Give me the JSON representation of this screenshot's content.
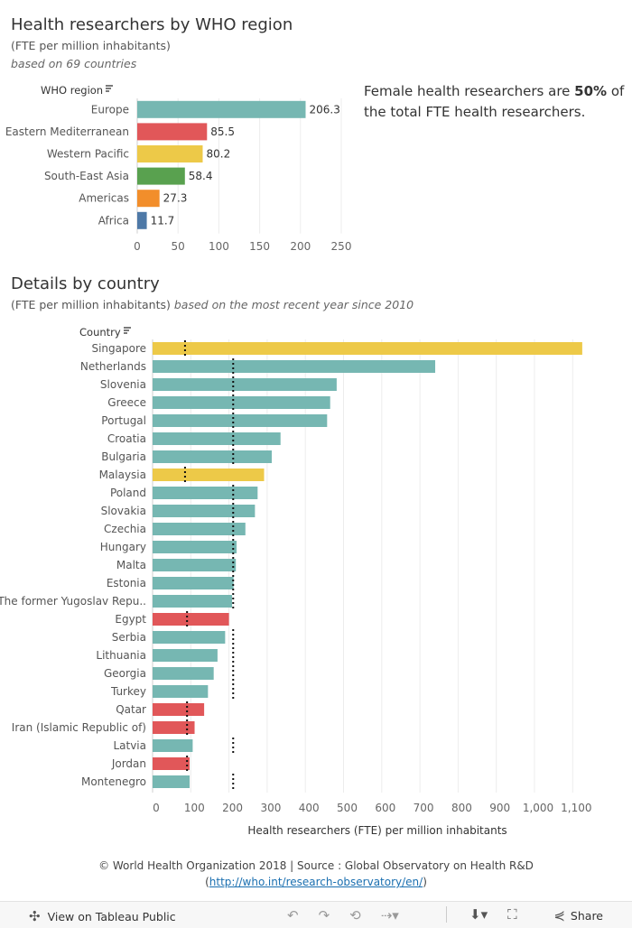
{
  "header": {
    "title": "Health researchers by WHO region",
    "subtitle": "(FTE per million inhabitants)",
    "note": "based on 69 countries"
  },
  "callout": {
    "text_before": "Female health researchers are ",
    "highlight": "50%",
    "text_after": " of the total FTE health researchers."
  },
  "details": {
    "title": "Details by country",
    "subtitle": "(FTE per million inhabitants)",
    "note": "based on the most recent year since 2010"
  },
  "footer": {
    "credit": "© World Health Organization 2018 | Source : Global Observatory on Health R&D",
    "link_open": "(",
    "link": "http://who.int/research-observatory/en/",
    "link_close": ")"
  },
  "toolbar": {
    "view_label": "View on Tableau Public",
    "share_label": "Share"
  },
  "colors": {
    "Europe": "#76b7b2",
    "Eastern Mediterranean": "#e15759",
    "Western Pacific": "#edc948",
    "South-East Asia": "#59a14f",
    "Americas": "#f28e2b",
    "Africa": "#4e79a7"
  },
  "chart_data": [
    {
      "type": "bar",
      "orientation": "horizontal",
      "dimension_label": "WHO region",
      "categories": [
        "Europe",
        "Eastern Mediterranean",
        "Western Pacific",
        "South-East Asia",
        "Americas",
        "Africa"
      ],
      "values": [
        206.3,
        85.5,
        80.2,
        58.4,
        27.3,
        11.7
      ],
      "value_labels": [
        "206.3",
        "85.5",
        "80.2",
        "58.4",
        "27.3",
        "11.7"
      ],
      "xlim": [
        0,
        250
      ],
      "xticks": [
        0,
        50,
        100,
        150,
        200,
        250
      ],
      "xtick_labels": [
        "0",
        "50",
        "100",
        "150",
        "200",
        "250"
      ],
      "grid": true
    },
    {
      "type": "bar",
      "orientation": "horizontal",
      "dimension_label": "Country",
      "xlabel": "Health researchers (FTE) per million inhabitants",
      "categories": [
        "Singapore",
        "Netherlands",
        "Slovenia",
        "Greece",
        "Portugal",
        "Croatia",
        "Bulgaria",
        "Malaysia",
        "Poland",
        "Slovakia",
        "Czechia",
        "Hungary",
        "Malta",
        "Estonia",
        "The former Yugoslav Repu..",
        "Egypt",
        "Serbia",
        "Lithuania",
        "Georgia",
        "Turkey",
        "Qatar",
        "Iran (Islamic Republic of)",
        "Latvia",
        "Jordan",
        "Montenegro"
      ],
      "values": [
        1125,
        740,
        482,
        465,
        457,
        335,
        312,
        292,
        275,
        268,
        243,
        220,
        218,
        212,
        208,
        200,
        190,
        170,
        160,
        145,
        135,
        110,
        105,
        97,
        97
      ],
      "regions": [
        "Western Pacific",
        "Europe",
        "Europe",
        "Europe",
        "Europe",
        "Europe",
        "Europe",
        "Western Pacific",
        "Europe",
        "Europe",
        "Europe",
        "Europe",
        "Europe",
        "Europe",
        "Europe",
        "Eastern Mediterranean",
        "Europe",
        "Europe",
        "Europe",
        "Europe",
        "Eastern Mediterranean",
        "Eastern Mediterranean",
        "Europe",
        "Eastern Mediterranean",
        "Europe"
      ],
      "reference_lines": [
        80.2,
        206.3,
        80.2,
        206.3,
        85.5,
        206.3,
        85.5,
        206.3,
        85.5,
        206.3
      ],
      "reference_line_segments": [
        {
          "value": 80.2,
          "from": 0,
          "to": 0
        },
        {
          "value": 206.3,
          "from": 1,
          "to": 6
        },
        {
          "value": 80.2,
          "from": 7,
          "to": 7
        },
        {
          "value": 206.3,
          "from": 8,
          "to": 14
        },
        {
          "value": 85.5,
          "from": 15,
          "to": 15
        },
        {
          "value": 206.3,
          "from": 16,
          "to": 19
        },
        {
          "value": 85.5,
          "from": 20,
          "to": 21
        },
        {
          "value": 206.3,
          "from": 22,
          "to": 22
        },
        {
          "value": 85.5,
          "from": 23,
          "to": 23
        },
        {
          "value": 206.3,
          "from": 24,
          "to": 24
        }
      ],
      "xlim": [
        0,
        1130
      ],
      "xticks": [
        0,
        100,
        200,
        300,
        400,
        500,
        600,
        700,
        800,
        900,
        1000,
        1100
      ],
      "xtick_labels": [
        "0",
        "100",
        "200",
        "300",
        "400",
        "500",
        "600",
        "700",
        "800",
        "900",
        "1,000",
        "1,100"
      ],
      "grid": true
    }
  ]
}
